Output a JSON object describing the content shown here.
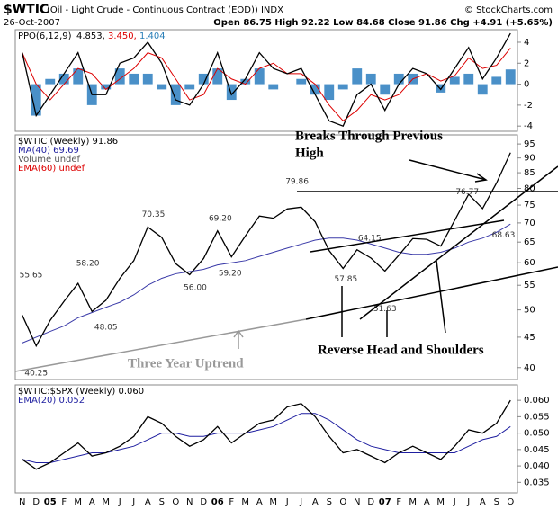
{
  "header": {
    "symbol": "$WTIC",
    "description": "(Oil - Light Crude - Continuous Contract (EOD)) INDX",
    "copyright": "© StockCharts.com",
    "date": "26-Oct-2007",
    "quote": "Open 86.75  High 92.22  Low 84.68  Close 91.86  Chg +4.91 (+5.65%)"
  },
  "annotations": {
    "breaks_1": "Breaks Through Previous",
    "breaks_2": "High",
    "head_shoulders": "Reverse Head and Shoulders",
    "uptrend": "Three Year Uptrend"
  },
  "chart_data": [
    {
      "type": "line",
      "legend": [
        {
          "text": "PPO(6,12,9)",
          "color": "#000000"
        },
        {
          "text": "4.853,",
          "color": "#000000"
        },
        {
          "text": "3.450,",
          "color": "#dd0000"
        },
        {
          "text": "1.404",
          "color": "#2a7fb8"
        }
      ],
      "ylim": [
        -4.5,
        5.2
      ],
      "yticks": [
        4,
        2,
        0,
        -2,
        -4
      ],
      "series": [
        {
          "style": "bar",
          "color": "#4a90c8",
          "values": [
            0,
            -3,
            0.5,
            1,
            1.5,
            -2,
            -0.5,
            1.5,
            1,
            1,
            -0.5,
            -2,
            -0.5,
            1,
            1.5,
            -1.5,
            0.5,
            1.5,
            -0.5,
            0,
            0.5,
            -1,
            -1.5,
            -0.5,
            1.5,
            1,
            -1,
            1,
            1,
            0,
            -0.8,
            0.7,
            1,
            -1,
            0.7,
            1.404
          ]
        },
        {
          "style": "line",
          "color": "#dd0000",
          "values": [
            3,
            0,
            -1.5,
            0,
            1.5,
            1,
            -0.5,
            0.5,
            1.5,
            3,
            2.5,
            0.5,
            -1.5,
            -1,
            1.5,
            0.5,
            0,
            1.5,
            2,
            1,
            1,
            0,
            -2,
            -3.5,
            -2.5,
            -1,
            -1.5,
            -1,
            0.5,
            1,
            0.3,
            0.8,
            2.5,
            1.5,
            1.8,
            3.45
          ]
        },
        {
          "style": "line",
          "color": "#000000",
          "values": [
            3,
            -3,
            -1,
            1,
            3,
            -1,
            -1,
            2,
            2.5,
            4,
            2,
            -1.5,
            -2,
            0,
            3,
            -1,
            0.5,
            3,
            1.5,
            1,
            1.5,
            -1,
            -3.5,
            -4,
            -1,
            0,
            -2.5,
            0,
            1.5,
            1,
            -0.5,
            1.5,
            3.5,
            0.5,
            2.5,
            4.853
          ]
        }
      ]
    },
    {
      "type": "line",
      "log": true,
      "legend": [
        {
          "text": "$WTIC (Weekly) 91.86",
          "color": "#000000"
        },
        {
          "text": "MA(40) 69.69",
          "color": "#1f1fa0"
        },
        {
          "text": "Volume undef",
          "color": "#555555"
        },
        {
          "text": "EMA(60) undef",
          "color": "#dd0000"
        }
      ],
      "ylim": [
        38.2,
        98.4
      ],
      "yticks": [
        95,
        90,
        85,
        80,
        75,
        70,
        65,
        60,
        55,
        50,
        45,
        40
      ],
      "series": [
        {
          "style": "line",
          "color": "#3a3aa8",
          "values": [
            44,
            45,
            46,
            47,
            48.5,
            49.5,
            50.5,
            51.5,
            53,
            55,
            56.5,
            57.5,
            58,
            58.5,
            59.5,
            60,
            60.5,
            61.5,
            62.5,
            63.5,
            64.5,
            65.5,
            66,
            66,
            65.5,
            64.5,
            63.5,
            62.5,
            62,
            62,
            62.5,
            63.5,
            65,
            66,
            67.5,
            69.69
          ]
        },
        {
          "style": "line",
          "color": "#000000",
          "values": [
            49,
            43.5,
            48,
            51.7,
            55.4,
            49.7,
            51.9,
            56.5,
            60.5,
            68.9,
            66.2,
            59.8,
            57.3,
            61,
            67.9,
            61.4,
            66.6,
            71.9,
            71.3,
            73.9,
            74.4,
            70.3,
            62.9,
            58.7,
            63.1,
            61.1,
            58.1,
            61.8,
            65.9,
            65.7,
            64,
            70.7,
            78.2,
            74,
            81.7,
            91.86
          ]
        }
      ],
      "price_labels": {
        "x": [
          -0.2,
          1,
          4.7,
          6,
          9.4,
          12.4,
          14.2,
          14.9,
          19.7,
          24.9,
          23.2,
          26,
          31.9,
          34.5
        ],
        "values": [
          55.65,
          40.25,
          58.2,
          48.05,
          70.35,
          56,
          69.2,
          59.2,
          79.86,
          64.15,
          57.85,
          51.63,
          76.77,
          68.63
        ],
        "value_labels": [
          "55.65",
          "40.25",
          "58.20",
          "48.05",
          "70.35",
          "56.00",
          "69.20",
          "59.20",
          "79.86",
          "64.15",
          "57.85",
          "51.63",
          "76.77",
          "68.63"
        ]
      }
    },
    {
      "type": "line",
      "legend": [
        {
          "text": "$WTIC:$SPX (Weekly) 0.060",
          "color": "#000000"
        },
        {
          "text": "EMA(20) 0.052",
          "color": "#1f1fa0"
        }
      ],
      "ylim": [
        0.0318,
        0.0647
      ],
      "yticks": [
        {
          "value": 0.06,
          "label": "0.060"
        },
        {
          "value": 0.055,
          "label": "0.055"
        },
        {
          "value": 0.05,
          "label": "0.050"
        },
        {
          "value": 0.045,
          "label": "0.045"
        },
        {
          "value": 0.04,
          "label": "0.040"
        },
        {
          "value": 0.035,
          "label": "0.035"
        }
      ],
      "categories": [
        "N",
        "D",
        "05",
        "F",
        "M",
        "A",
        "M",
        "J",
        "J",
        "A",
        "S",
        "O",
        "N",
        "D",
        "06",
        "F",
        "M",
        "A",
        "M",
        "J",
        "J",
        "A",
        "S",
        "O",
        "N",
        "D",
        "07",
        "F",
        "M",
        "A",
        "M",
        "J",
        "J",
        "A",
        "S",
        "O"
      ],
      "series": [
        {
          "style": "line",
          "color": "#1f1fa0",
          "values": [
            0.042,
            0.041,
            0.041,
            0.042,
            0.043,
            0.044,
            0.044,
            0.045,
            0.046,
            0.048,
            0.05,
            0.05,
            0.049,
            0.049,
            0.05,
            0.05,
            0.05,
            0.051,
            0.052,
            0.054,
            0.056,
            0.056,
            0.054,
            0.051,
            0.048,
            0.046,
            0.045,
            0.044,
            0.044,
            0.044,
            0.044,
            0.044,
            0.046,
            0.048,
            0.049,
            0.052
          ]
        },
        {
          "style": "line",
          "color": "#000000",
          "values": [
            0.042,
            0.039,
            0.041,
            0.044,
            0.047,
            0.043,
            0.044,
            0.046,
            0.049,
            0.055,
            0.053,
            0.049,
            0.046,
            0.048,
            0.052,
            0.047,
            0.05,
            0.053,
            0.054,
            0.058,
            0.059,
            0.055,
            0.049,
            0.044,
            0.045,
            0.043,
            0.041,
            0.044,
            0.046,
            0.044,
            0.042,
            0.046,
            0.051,
            0.05,
            0.053,
            0.06
          ]
        }
      ]
    }
  ]
}
